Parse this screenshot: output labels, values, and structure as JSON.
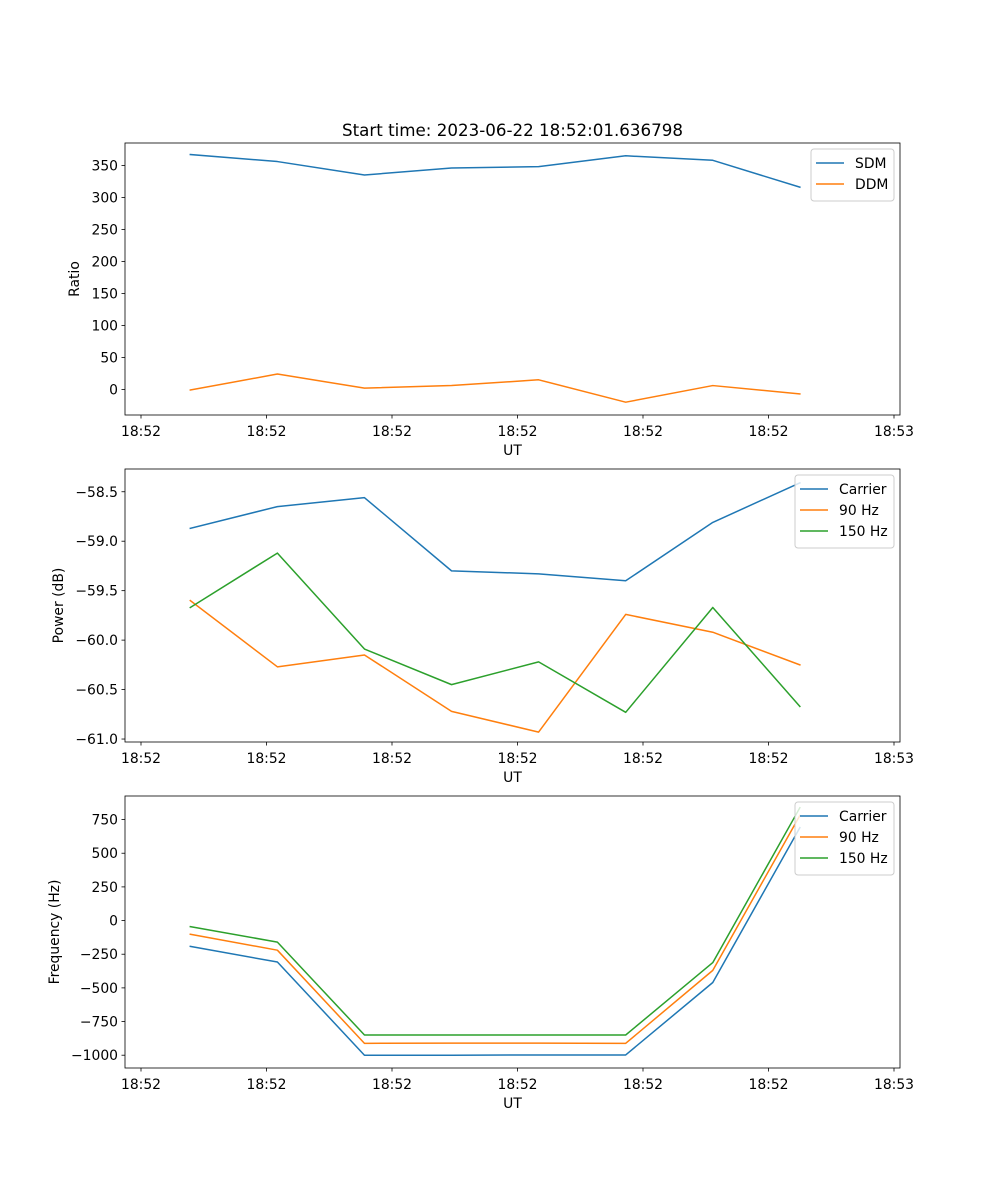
{
  "title": "Start time: 2023-06-22 18:52:01.636798",
  "colors": {
    "c0": "#1f77b4",
    "c1": "#ff7f0e",
    "c2": "#2ca02c"
  },
  "x_tick_labels": [
    "18:52",
    "18:52",
    "18:52",
    "18:52",
    "18:52",
    "18:52",
    "18:53"
  ],
  "chart_data": [
    {
      "type": "line",
      "title": "Start time: 2023-06-22 18:52:01.636798",
      "xlabel": "UT",
      "ylabel": "Ratio",
      "x": [
        1,
        2,
        3,
        4,
        5,
        6,
        7,
        8
      ],
      "xlim": [
        0.25,
        9.15
      ],
      "ylim": [
        -40,
        385
      ],
      "yticks": [
        0,
        50,
        100,
        150,
        200,
        250,
        300,
        350
      ],
      "legend": "top-right",
      "grid": false,
      "series": [
        {
          "name": "SDM",
          "color": "#1f77b4",
          "values": [
            367,
            356,
            335,
            346,
            348,
            365,
            358,
            316
          ]
        },
        {
          "name": "DDM",
          "color": "#ff7f0e",
          "values": [
            -1,
            24,
            2,
            6,
            15,
            -20,
            6,
            -7
          ]
        }
      ]
    },
    {
      "type": "line",
      "xlabel": "UT",
      "ylabel": "Power (dB)",
      "x": [
        1,
        2,
        3,
        4,
        5,
        6,
        7,
        8
      ],
      "xlim": [
        0.25,
        9.15
      ],
      "ylim": [
        -61.03,
        -58.27
      ],
      "yticks": [
        -61.0,
        -60.5,
        -60.0,
        -59.5,
        -59.0,
        -58.5
      ],
      "ytick_labels": [
        "−61.0",
        "−60.5",
        "−60.0",
        "−59.5",
        "−59.0",
        "−58.5"
      ],
      "legend": "top-right",
      "grid": false,
      "series": [
        {
          "name": "Carrier",
          "color": "#1f77b4",
          "values": [
            -58.87,
            -58.65,
            -58.56,
            -59.3,
            -59.33,
            -59.4,
            -58.81,
            -58.41
          ]
        },
        {
          "name": "90 Hz",
          "color": "#ff7f0e",
          "values": [
            -59.6,
            -60.27,
            -60.15,
            -60.72,
            -60.93,
            -59.74,
            -59.92,
            -60.25
          ]
        },
        {
          "name": "150 Hz",
          "color": "#2ca02c",
          "values": [
            -59.67,
            -59.12,
            -60.09,
            -60.45,
            -60.22,
            -60.73,
            -59.67,
            -60.67
          ]
        }
      ]
    },
    {
      "type": "line",
      "xlabel": "UT",
      "ylabel": "Frequency (Hz)",
      "x": [
        1,
        2,
        3,
        4,
        5,
        6,
        7,
        8
      ],
      "xlim": [
        0.25,
        9.15
      ],
      "ylim": [
        -1095,
        925
      ],
      "yticks": [
        -1000,
        -750,
        -500,
        -250,
        0,
        250,
        500,
        750
      ],
      "ytick_labels": [
        "−1000",
        "−750",
        "−500",
        "−250",
        "0",
        "250",
        "500",
        "750"
      ],
      "legend": "top-right",
      "grid": false,
      "series": [
        {
          "name": "Carrier",
          "color": "#1f77b4",
          "values": [
            -192,
            -308,
            -1000,
            -1000,
            -998,
            -998,
            -460,
            690
          ]
        },
        {
          "name": "90 Hz",
          "color": "#ff7f0e",
          "values": [
            -102,
            -220,
            -912,
            -910,
            -910,
            -912,
            -370,
            780
          ]
        },
        {
          "name": "150 Hz",
          "color": "#2ca02c",
          "values": [
            -45,
            -160,
            -850,
            -850,
            -850,
            -850,
            -312,
            838
          ]
        }
      ]
    }
  ]
}
